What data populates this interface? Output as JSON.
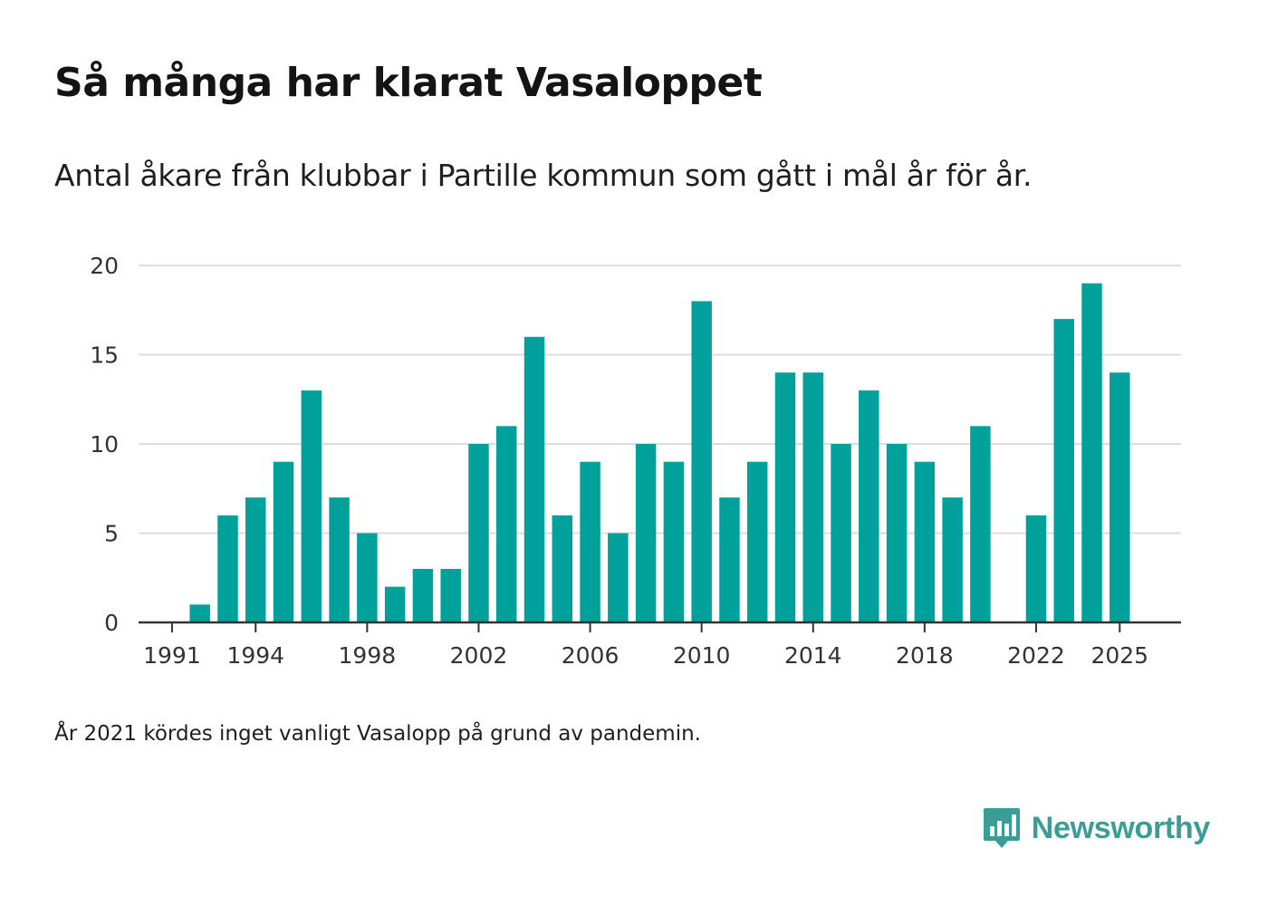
{
  "header": {
    "title": "Så många har klarat Vasaloppet",
    "subtitle": "Antal åkare från klubbar i Partille kommun som gått i mål år för år."
  },
  "footer": {
    "note": "År 2021 kördes inget vanligt Vasalopp på grund av pandemin.",
    "brand_name": "Newsworthy",
    "brand_icon": "bar-chart-speech-bubble-icon"
  },
  "colors": {
    "bar": "#00a19a",
    "grid": "#dddddd",
    "axis": "#333333",
    "brand": "#3a9e96"
  },
  "chart_data": {
    "type": "bar",
    "title": "Så många har klarat Vasaloppet",
    "xlabel": "",
    "ylabel": "",
    "x": [
      1991,
      1992,
      1993,
      1994,
      1995,
      1996,
      1997,
      1998,
      1999,
      2000,
      2001,
      2002,
      2003,
      2004,
      2005,
      2006,
      2007,
      2008,
      2009,
      2010,
      2011,
      2012,
      2013,
      2014,
      2015,
      2016,
      2017,
      2018,
      2019,
      2020,
      2021,
      2022,
      2023,
      2024,
      2025
    ],
    "values": [
      0,
      1,
      6,
      7,
      9,
      13,
      7,
      5,
      2,
      3,
      3,
      10,
      11,
      16,
      6,
      9,
      5,
      10,
      9,
      18,
      7,
      9,
      14,
      14,
      10,
      13,
      10,
      9,
      7,
      11,
      0,
      6,
      17,
      19,
      14
    ],
    "x_ticks": [
      1991,
      1994,
      1998,
      2002,
      2006,
      2010,
      2014,
      2018,
      2022,
      2025
    ],
    "x_tick_labels": [
      "1991",
      "1994",
      "1998",
      "2002",
      "2006",
      "2010",
      "2014",
      "2018",
      "2022",
      "2025"
    ],
    "y_ticks": [
      0,
      5,
      10,
      15,
      20
    ],
    "y_tick_labels": [
      "0",
      "5",
      "10",
      "15",
      "20"
    ],
    "ylim": [
      0,
      20
    ],
    "xlim": [
      1989.8,
      2027.2
    ],
    "grid": true,
    "legend": "none"
  }
}
